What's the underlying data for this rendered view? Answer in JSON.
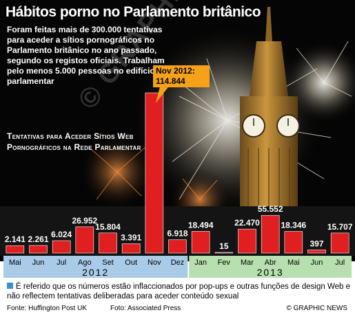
{
  "header": {
    "title": "Hábitos porno no Parlamento britânico",
    "intro": "Foram feitas mais de 300.000 tentativas para aceder a sítios pornográficos no Parlamento britânico no ano passado, segundo os registos oficiais. Trabalham pelo menos 5.000 pessoas no edifício parlamentar",
    "subtitle": "Tentativas para Aceder Sítios Web Pornográficos na Rede Parlamentar"
  },
  "callout": {
    "line1": "Nov 2012:",
    "line2": "114.844"
  },
  "watermark": "© GRAPHIC NEWS",
  "footer": {
    "note": "É referido que os números estão inflaccionados por pop-ups e outras funções de design Web e não reflectem tentativas deliberadas para aceder conteúdo sexual",
    "source": "Fonte: Huffington Post UK",
    "photo": "Foto: Associated Press",
    "copyright": "© GRAPHIC NEWS"
  },
  "colors": {
    "bar": "#e02020",
    "axis_2012": "#a9cbe8",
    "axis_2013": "#b8dfb0",
    "note_square": "#3a8fd0"
  },
  "chart_data": {
    "type": "bar",
    "categories": [
      "Mai",
      "Jun",
      "Jul",
      "Ago",
      "Set",
      "Out",
      "Nov",
      "Dez",
      "Jan",
      "Fev",
      "Mar",
      "Abr",
      "Mai",
      "Jun",
      "Jul"
    ],
    "years": [
      {
        "label": "2012",
        "months": [
          "Mai",
          "Jun",
          "Jul",
          "Ago",
          "Set",
          "Out",
          "Nov",
          "Dez"
        ]
      },
      {
        "label": "2013",
        "months": [
          "Jan",
          "Fev",
          "Mar",
          "Abr",
          "Mai",
          "Jun",
          "Jul"
        ]
      }
    ],
    "values": [
      2141,
      2261,
      6024,
      26952,
      15804,
      3391,
      114844,
      6918,
      18494,
      15,
      22470,
      55552,
      18346,
      397,
      15707
    ],
    "value_labels": [
      "2.141",
      "2.261",
      "6.024",
      "26.952",
      "15.804",
      "3.391",
      "",
      "6.918",
      "18.494",
      "15",
      "22.470",
      "55.552",
      "18.346",
      "397",
      "15.707"
    ],
    "scale_break": true,
    "ylim": [
      0,
      115000
    ],
    "grid": false,
    "legend": "none"
  }
}
